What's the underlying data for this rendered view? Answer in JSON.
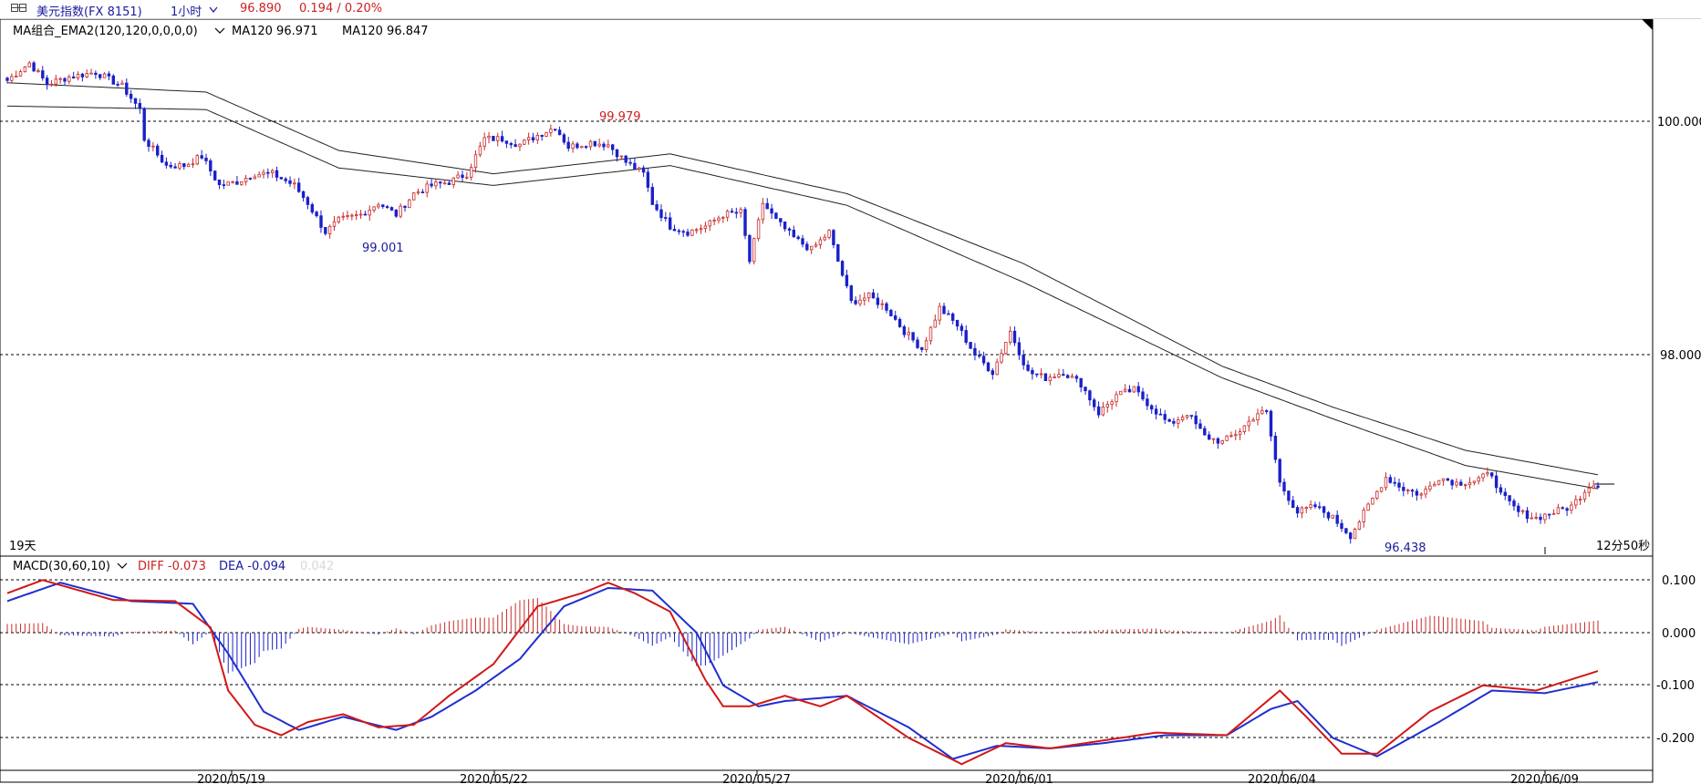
{
  "topbar": {
    "symbol": "美元指数(FX 8151)",
    "period": "1小时",
    "price": "96.890",
    "change": "0.194 / 0.20%"
  },
  "main_panel": {
    "legend_name": "MA组合_EMA2(120,120,0,0,0,0)",
    "ma1_text": "MA120 96.971",
    "ma2_text": "MA120 96.847",
    "span_label": "19天",
    "countdown_label": "12分50秒"
  },
  "macd_panel": {
    "legend_name": "MACD(30,60,10)",
    "diff_text": "DIFF -0.073",
    "dea_text": "DEA -0.094",
    "macd_text": "0.042"
  },
  "colors": {
    "up": "#c82a2a",
    "down": "#1a20c8",
    "diff": "#d01818",
    "dea": "#1f2fd0",
    "text_red": "#cc2020",
    "text_blue": "#1a1aa0"
  },
  "chart_data": [
    {
      "type": "candlestick",
      "xlabel": "",
      "ylabel": "",
      "ylim": [
        95.9,
        100.6
      ],
      "y_ticks": [
        "100.000",
        "98.000"
      ],
      "x_ticks": [
        "2020/05/19",
        "2020/05/22",
        "2020/05/27",
        "2020/06/01",
        "2020/06/04",
        "2020/06/09"
      ],
      "price_path": [
        [
          0,
          100.35
        ],
        [
          5,
          100.5
        ],
        [
          9,
          100.32
        ],
        [
          14,
          100.38
        ],
        [
          20,
          100.42
        ],
        [
          26,
          100.3
        ],
        [
          30,
          100.1
        ],
        [
          31,
          99.85
        ],
        [
          36,
          99.62
        ],
        [
          40,
          99.62
        ],
        [
          44,
          99.7
        ],
        [
          48,
          99.45
        ],
        [
          52,
          99.48
        ],
        [
          56,
          99.55
        ],
        [
          60,
          99.55
        ],
        [
          65,
          99.45
        ],
        [
          68,
          99.3
        ],
        [
          72,
          99.05
        ],
        [
          75,
          99.15
        ],
        [
          80,
          99.2
        ],
        [
          84,
          99.3
        ],
        [
          88,
          99.2
        ],
        [
          92,
          99.38
        ],
        [
          96,
          99.45
        ],
        [
          100,
          99.48
        ],
        [
          104,
          99.55
        ],
        [
          108,
          99.85
        ],
        [
          112,
          99.85
        ],
        [
          116,
          99.8
        ],
        [
          120,
          99.88
        ],
        [
          124,
          99.95
        ],
        [
          127,
          99.78
        ],
        [
          132,
          99.82
        ],
        [
          136,
          99.8
        ],
        [
          140,
          99.65
        ],
        [
          144,
          99.55
        ],
        [
          146,
          99.3
        ],
        [
          150,
          99.1
        ],
        [
          154,
          99.05
        ],
        [
          158,
          99.1
        ],
        [
          162,
          99.2
        ],
        [
          166,
          99.22
        ],
        [
          168,
          98.8
        ],
        [
          171,
          99.3
        ],
        [
          174,
          99.15
        ],
        [
          178,
          99.0
        ],
        [
          182,
          98.9
        ],
        [
          186,
          99.05
        ],
        [
          188,
          98.8
        ],
        [
          191,
          98.45
        ],
        [
          195,
          98.5
        ],
        [
          199,
          98.4
        ],
        [
          203,
          98.2
        ],
        [
          207,
          98.05
        ],
        [
          211,
          98.4
        ],
        [
          215,
          98.25
        ],
        [
          219,
          98.0
        ],
        [
          223,
          97.85
        ],
        [
          227,
          98.2
        ],
        [
          231,
          97.85
        ],
        [
          235,
          97.8
        ],
        [
          239,
          97.85
        ],
        [
          243,
          97.75
        ],
        [
          247,
          97.5
        ],
        [
          251,
          97.65
        ],
        [
          255,
          97.7
        ],
        [
          259,
          97.55
        ],
        [
          263,
          97.4
        ],
        [
          267,
          97.5
        ],
        [
          271,
          97.3
        ],
        [
          275,
          97.25
        ],
        [
          279,
          97.35
        ],
        [
          283,
          97.5
        ],
        [
          285,
          97.5
        ],
        [
          288,
          96.9
        ],
        [
          292,
          96.65
        ],
        [
          296,
          96.7
        ],
        [
          300,
          96.6
        ],
        [
          304,
          96.45
        ],
        [
          308,
          96.7
        ],
        [
          312,
          96.95
        ],
        [
          316,
          96.85
        ],
        [
          320,
          96.8
        ],
        [
          324,
          96.95
        ],
        [
          328,
          96.9
        ],
        [
          332,
          96.92
        ],
        [
          336,
          96.98
        ],
        [
          338,
          96.8
        ],
        [
          342,
          96.65
        ],
        [
          346,
          96.6
        ],
        [
          350,
          96.65
        ],
        [
          354,
          96.7
        ],
        [
          358,
          96.88
        ],
        [
          360,
          96.89
        ]
      ],
      "n_bars": 361,
      "series": [
        {
          "name": "MA120",
          "last": 96.971,
          "path": [
            [
              0,
              100.33
            ],
            [
              45,
              100.25
            ],
            [
              75,
              99.75
            ],
            [
              110,
              99.55
            ],
            [
              150,
              99.72
            ],
            [
              190,
              99.38
            ],
            [
              230,
              98.78
            ],
            [
              275,
              97.9
            ],
            [
              300,
              97.55
            ],
            [
              330,
              97.18
            ],
            [
              360,
              96.97
            ]
          ]
        },
        {
          "name": "MA120",
          "last": 96.847,
          "path": [
            [
              0,
              100.13
            ],
            [
              45,
              100.1
            ],
            [
              75,
              99.6
            ],
            [
              110,
              99.45
            ],
            [
              150,
              99.62
            ],
            [
              190,
              99.28
            ],
            [
              230,
              98.62
            ],
            [
              275,
              97.8
            ],
            [
              300,
              97.45
            ],
            [
              330,
              97.05
            ],
            [
              360,
              96.85
            ]
          ]
        }
      ],
      "annotations": [
        {
          "text": "99.979",
          "x": 127,
          "y": 99.979
        },
        {
          "text": "99.001",
          "x": 75,
          "y": 99.001
        },
        {
          "text": "96.438",
          "x": 304,
          "y": 96.438
        }
      ]
    },
    {
      "type": "line",
      "ylim": [
        -0.255,
        0.115
      ],
      "y_ticks": [
        "0.100",
        "0.000",
        "-0.100",
        "-0.200"
      ],
      "series": [
        {
          "name": "DIFF",
          "last": -0.073,
          "path": [
            [
              0,
              0.075
            ],
            [
              8,
              0.1
            ],
            [
              24,
              0.062
            ],
            [
              38,
              0.06
            ],
            [
              46,
              0.01
            ],
            [
              50,
              -0.11
            ],
            [
              56,
              -0.175
            ],
            [
              62,
              -0.195
            ],
            [
              68,
              -0.17
            ],
            [
              76,
              -0.155
            ],
            [
              84,
              -0.18
            ],
            [
              92,
              -0.175
            ],
            [
              100,
              -0.12
            ],
            [
              110,
              -0.06
            ],
            [
              120,
              0.05
            ],
            [
              130,
              0.075
            ],
            [
              136,
              0.095
            ],
            [
              142,
              0.075
            ],
            [
              150,
              0.04
            ],
            [
              158,
              -0.09
            ],
            [
              162,
              -0.14
            ],
            [
              168,
              -0.14
            ],
            [
              176,
              -0.12
            ],
            [
              184,
              -0.14
            ],
            [
              190,
              -0.12
            ],
            [
              204,
              -0.2
            ],
            [
              216,
              -0.25
            ],
            [
              226,
              -0.21
            ],
            [
              236,
              -0.22
            ],
            [
              248,
              -0.205
            ],
            [
              260,
              -0.19
            ],
            [
              276,
              -0.195
            ],
            [
              288,
              -0.11
            ],
            [
              294,
              -0.16
            ],
            [
              302,
              -0.23
            ],
            [
              310,
              -0.23
            ],
            [
              322,
              -0.15
            ],
            [
              334,
              -0.1
            ],
            [
              346,
              -0.11
            ],
            [
              360,
              -0.073
            ]
          ]
        },
        {
          "name": "DEA",
          "last": -0.094,
          "path": [
            [
              0,
              0.06
            ],
            [
              12,
              0.095
            ],
            [
              28,
              0.06
            ],
            [
              42,
              0.055
            ],
            [
              50,
              -0.04
            ],
            [
              58,
              -0.15
            ],
            [
              66,
              -0.185
            ],
            [
              76,
              -0.16
            ],
            [
              88,
              -0.185
            ],
            [
              96,
              -0.16
            ],
            [
              106,
              -0.11
            ],
            [
              116,
              -0.05
            ],
            [
              126,
              0.05
            ],
            [
              136,
              0.085
            ],
            [
              146,
              0.08
            ],
            [
              156,
              0.0
            ],
            [
              162,
              -0.1
            ],
            [
              170,
              -0.14
            ],
            [
              176,
              -0.13
            ],
            [
              190,
              -0.12
            ],
            [
              204,
              -0.18
            ],
            [
              214,
              -0.24
            ],
            [
              224,
              -0.215
            ],
            [
              236,
              -0.22
            ],
            [
              248,
              -0.21
            ],
            [
              262,
              -0.195
            ],
            [
              276,
              -0.195
            ],
            [
              286,
              -0.145
            ],
            [
              292,
              -0.13
            ],
            [
              300,
              -0.2
            ],
            [
              310,
              -0.235
            ],
            [
              324,
              -0.17
            ],
            [
              336,
              -0.11
            ],
            [
              348,
              -0.115
            ],
            [
              360,
              -0.094
            ]
          ]
        }
      ],
      "histogram_last": 0.042
    }
  ]
}
